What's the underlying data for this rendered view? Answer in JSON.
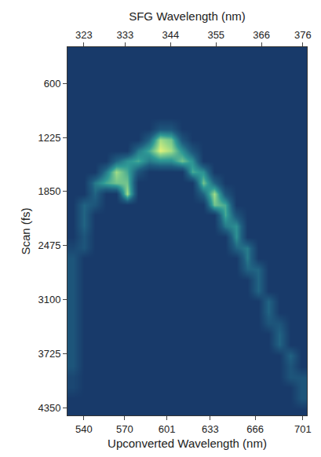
{
  "chart_data": {
    "type": "heatmap",
    "x_label": "Upconverted Wavelength (nm)",
    "x2_label": "SFG Wavelength (nm)",
    "y_label": "Scan (fs)",
    "xlim": [
      528,
      704
    ],
    "xticks": [
      540,
      570,
      601,
      633,
      666,
      701
    ],
    "x2lim": [
      319.05,
      376.99
    ],
    "x2ticks": [
      323,
      333,
      344,
      355,
      366,
      376
    ],
    "ylim": [
      4440,
      180
    ],
    "yticks": [
      600,
      1225,
      1850,
      2475,
      3100,
      3725,
      4350
    ],
    "zlim": [
      0,
      9
    ],
    "x": [
      532,
      540,
      548,
      556,
      564,
      572,
      580,
      588,
      596,
      604,
      612,
      620,
      628,
      636,
      644,
      652,
      660,
      668,
      676,
      684,
      692,
      700
    ],
    "y": [
      250,
      375,
      500,
      625,
      750,
      875,
      1000,
      1125,
      1250,
      1375,
      1500,
      1625,
      1750,
      1875,
      2000,
      2125,
      2250,
      2375,
      2500,
      2625,
      2750,
      2875,
      3000,
      3125,
      3250,
      3375,
      3500,
      3625,
      3750,
      3875,
      4000,
      4125,
      4250,
      4375
    ],
    "z": [
      [
        0,
        0,
        0,
        0,
        0,
        0,
        0,
        0,
        0,
        0,
        0,
        0,
        0,
        0,
        0,
        0,
        0,
        0,
        0,
        0,
        0,
        0
      ],
      [
        0,
        0,
        0,
        0,
        0,
        0,
        0,
        0,
        0,
        0,
        0,
        0,
        0,
        0,
        0,
        0,
        0,
        0,
        0,
        0,
        0,
        0
      ],
      [
        0,
        0,
        0,
        0,
        0,
        0,
        0,
        0,
        0,
        0,
        0,
        0,
        0,
        0,
        0,
        0,
        0,
        0,
        0,
        0,
        0,
        0
      ],
      [
        0,
        0,
        0,
        0,
        0,
        0,
        0,
        0,
        0,
        0,
        0,
        0,
        0,
        0,
        0,
        0,
        0,
        0,
        0,
        0,
        0,
        0
      ],
      [
        0,
        0,
        0,
        0,
        0,
        0,
        0,
        0,
        0,
        0,
        0,
        0,
        0,
        0,
        0,
        0,
        0,
        0,
        0,
        0,
        0,
        0
      ],
      [
        0,
        0,
        0,
        0,
        0,
        0,
        0,
        0,
        0,
        0,
        0,
        0,
        0,
        0,
        0,
        0,
        0,
        0,
        0,
        0,
        0,
        0
      ],
      [
        0,
        0,
        0,
        0,
        0,
        0,
        0,
        0,
        0,
        0,
        0,
        0,
        0,
        0,
        0,
        0,
        0,
        0,
        0,
        0,
        0,
        0
      ],
      [
        0,
        0,
        0,
        0,
        0,
        0,
        0,
        0,
        2,
        2,
        0,
        0,
        0,
        0,
        0,
        0,
        0,
        0,
        0,
        0,
        0,
        0
      ],
      [
        0,
        0,
        0,
        0,
        0,
        0,
        0,
        3,
        8,
        7,
        2,
        0,
        0,
        0,
        0,
        0,
        0,
        0,
        0,
        0,
        0,
        0
      ],
      [
        0,
        0,
        0,
        0,
        0,
        0,
        4,
        6,
        9,
        8,
        5,
        2,
        0,
        0,
        0,
        0,
        0,
        0,
        0,
        0,
        0,
        0
      ],
      [
        0,
        0,
        0,
        0,
        3,
        5,
        6,
        4,
        5,
        5,
        7,
        5,
        0,
        0,
        0,
        0,
        0,
        0,
        0,
        0,
        0,
        0
      ],
      [
        0,
        0,
        0,
        4,
        8,
        6,
        2,
        0,
        0,
        0,
        0,
        6,
        5,
        0,
        0,
        0,
        0,
        0,
        0,
        0,
        0,
        0
      ],
      [
        0,
        0,
        4,
        6,
        7,
        7,
        0,
        0,
        0,
        0,
        0,
        0,
        7,
        3,
        0,
        0,
        0,
        0,
        0,
        0,
        0,
        0
      ],
      [
        0,
        0,
        3,
        0,
        0,
        8,
        0,
        0,
        0,
        0,
        0,
        0,
        3,
        8,
        2,
        0,
        0,
        0,
        0,
        0,
        0,
        0
      ],
      [
        0,
        3,
        2,
        0,
        0,
        0,
        0,
        0,
        0,
        0,
        0,
        0,
        0,
        7,
        6,
        0,
        0,
        0,
        0,
        0,
        0,
        0
      ],
      [
        0,
        3,
        0,
        0,
        0,
        0,
        0,
        0,
        0,
        0,
        0,
        0,
        0,
        0,
        6,
        2,
        0,
        0,
        0,
        0,
        0,
        0
      ],
      [
        0,
        3,
        0,
        0,
        0,
        0,
        0,
        0,
        0,
        0,
        0,
        0,
        0,
        0,
        4,
        5,
        0,
        0,
        0,
        0,
        0,
        0
      ],
      [
        0,
        2,
        0,
        0,
        0,
        0,
        0,
        0,
        0,
        0,
        0,
        0,
        0,
        0,
        0,
        5,
        0,
        0,
        0,
        0,
        0,
        0
      ],
      [
        1,
        2,
        0,
        0,
        0,
        0,
        0,
        0,
        0,
        0,
        0,
        0,
        0,
        0,
        0,
        3,
        4,
        0,
        0,
        0,
        0,
        0
      ],
      [
        2,
        0,
        0,
        0,
        0,
        0,
        0,
        0,
        0,
        0,
        0,
        0,
        0,
        0,
        0,
        0,
        4,
        0,
        0,
        0,
        0,
        0
      ],
      [
        2,
        0,
        0,
        0,
        0,
        0,
        0,
        0,
        0,
        0,
        0,
        0,
        0,
        0,
        0,
        0,
        3,
        3,
        0,
        0,
        0,
        0
      ],
      [
        2,
        0,
        0,
        0,
        0,
        0,
        0,
        0,
        0,
        0,
        0,
        0,
        0,
        0,
        0,
        0,
        0,
        3,
        0,
        0,
        0,
        0
      ],
      [
        2,
        0,
        0,
        0,
        0,
        0,
        0,
        0,
        0,
        0,
        0,
        0,
        0,
        0,
        0,
        0,
        0,
        3,
        0,
        0,
        0,
        0
      ],
      [
        2,
        0,
        0,
        0,
        0,
        0,
        0,
        0,
        0,
        0,
        0,
        0,
        0,
        0,
        0,
        0,
        0,
        0,
        3,
        0,
        0,
        0
      ],
      [
        2,
        0,
        0,
        0,
        0,
        0,
        0,
        0,
        0,
        0,
        0,
        0,
        0,
        0,
        0,
        0,
        0,
        0,
        3,
        0,
        0,
        0
      ],
      [
        2,
        0,
        0,
        0,
        0,
        0,
        0,
        0,
        0,
        0,
        0,
        0,
        0,
        0,
        0,
        0,
        0,
        0,
        2,
        2,
        0,
        0
      ],
      [
        2,
        0,
        0,
        0,
        0,
        0,
        0,
        0,
        0,
        0,
        0,
        0,
        0,
        0,
        0,
        0,
        0,
        0,
        0,
        3,
        0,
        0
      ],
      [
        2,
        0,
        0,
        0,
        0,
        0,
        0,
        0,
        0,
        0,
        0,
        0,
        0,
        0,
        0,
        0,
        0,
        0,
        0,
        3,
        0,
        0
      ],
      [
        2,
        0,
        0,
        0,
        0,
        0,
        0,
        0,
        0,
        0,
        0,
        0,
        0,
        0,
        0,
        0,
        0,
        0,
        0,
        0,
        3,
        0
      ],
      [
        2,
        0,
        0,
        0,
        0,
        0,
        0,
        0,
        0,
        0,
        0,
        0,
        0,
        0,
        0,
        0,
        0,
        0,
        0,
        0,
        2,
        0
      ],
      [
        1,
        0,
        0,
        0,
        0,
        0,
        0,
        0,
        0,
        0,
        0,
        0,
        0,
        0,
        0,
        0,
        0,
        0,
        0,
        0,
        2,
        2
      ],
      [
        1,
        0,
        0,
        0,
        0,
        0,
        0,
        0,
        0,
        0,
        0,
        0,
        0,
        0,
        0,
        0,
        0,
        0,
        0,
        0,
        0,
        2
      ],
      [
        0,
        0,
        0,
        0,
        0,
        0,
        0,
        0,
        0,
        0,
        0,
        0,
        0,
        0,
        0,
        0,
        0,
        0,
        0,
        0,
        0,
        2
      ],
      [
        0,
        0,
        0,
        0,
        0,
        0,
        0,
        0,
        0,
        0,
        0,
        0,
        0,
        0,
        0,
        0,
        0,
        0,
        0,
        0,
        0,
        0
      ]
    ]
  }
}
